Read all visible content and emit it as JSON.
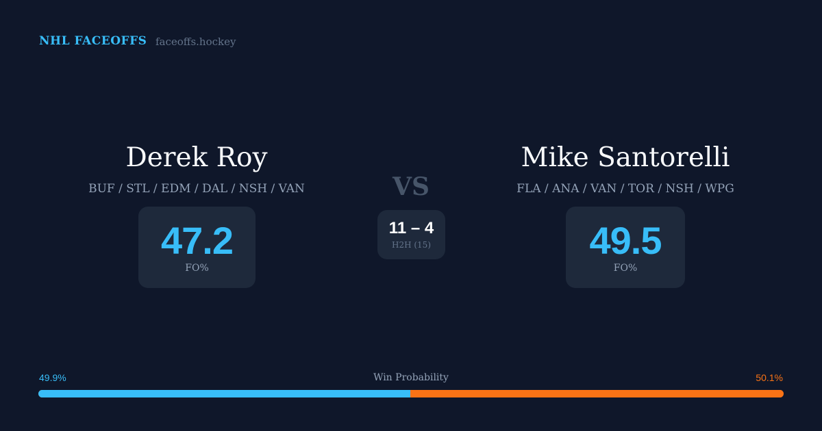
{
  "header": {
    "brand": "NHL FACEOFFS",
    "site": "faceoffs.hockey"
  },
  "left": {
    "name": "Derek Roy",
    "teams": "BUF / STL / EDM / DAL / NSH / VAN",
    "fo_pct": "47.2",
    "fo_label": "FO%"
  },
  "right": {
    "name": "Mike Santorelli",
    "teams": "FLA / ANA / VAN / TOR / NSH / WPG",
    "fo_pct": "49.5",
    "fo_label": "FO%"
  },
  "vs": "VS",
  "h2h": {
    "score": "11 – 4",
    "label": "H2H (15)"
  },
  "win_probability": {
    "label": "Win Probability",
    "left": "49.9%",
    "right": "50.1%",
    "left_value": 49.9,
    "right_value": 50.1,
    "colors": {
      "left": "#38bdf8",
      "right": "#f97316"
    }
  }
}
